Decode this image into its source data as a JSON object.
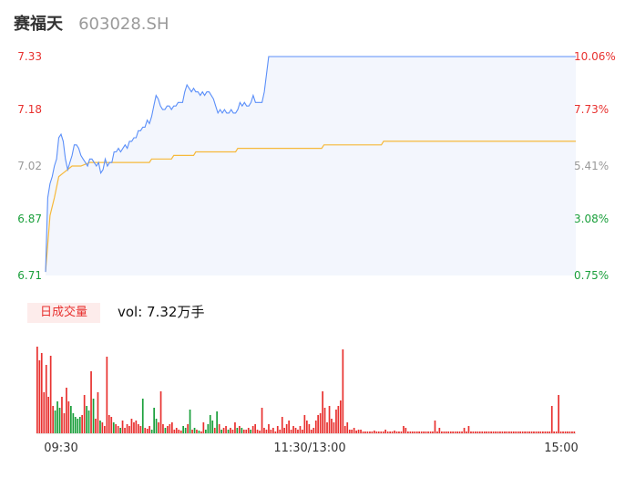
{
  "header": {
    "stock_name": "赛福天",
    "stock_code": "603028.SH"
  },
  "colors": {
    "price_line": "#5b8ff9",
    "avg_line": "#f6b93b",
    "area_fill": "#f3f6fd",
    "up": "#e8312f",
    "down": "#1a9f3b",
    "neutral": "#999999"
  },
  "volume_panel": {
    "badge": "日成交量",
    "summary": "vol: 7.32万手"
  },
  "chart_data": [
    {
      "type": "line",
      "name": "intraday-price",
      "y_left_ticks": [
        "7.33",
        "7.18",
        "7.02",
        "6.87",
        "6.71"
      ],
      "y_right_ticks": [
        "10.06%",
        "7.73%",
        "5.41%",
        "3.08%",
        "0.75%"
      ],
      "y_left_values": [
        7.33,
        7.18,
        7.02,
        6.87,
        6.71
      ],
      "y_tick_colors": [
        "up",
        "up",
        "neutral",
        "down",
        "down"
      ],
      "ylim": [
        6.71,
        7.33
      ],
      "x_ticks": [
        "09:30",
        "11:30/13:00",
        "15:00"
      ],
      "series": [
        {
          "key": "price",
          "color_key": "price_line",
          "points": [
            [
              0,
              6.72
            ],
            [
              1,
              6.93
            ],
            [
              2,
              6.97
            ],
            [
              3,
              6.99
            ],
            [
              4,
              7.02
            ],
            [
              5,
              7.04
            ],
            [
              6,
              7.1
            ],
            [
              7,
              7.11
            ],
            [
              8,
              7.09
            ],
            [
              9,
              7.04
            ],
            [
              10,
              7.01
            ],
            [
              11,
              7.03
            ],
            [
              12,
              7.05
            ],
            [
              13,
              7.08
            ],
            [
              14,
              7.08
            ],
            [
              15,
              7.07
            ],
            [
              16,
              7.05
            ],
            [
              17,
              7.04
            ],
            [
              18,
              7.03
            ],
            [
              19,
              7.02
            ],
            [
              20,
              7.04
            ],
            [
              21,
              7.04
            ],
            [
              22,
              7.03
            ],
            [
              23,
              7.02
            ],
            [
              24,
              7.03
            ],
            [
              25,
              7.0
            ],
            [
              26,
              7.01
            ],
            [
              27,
              7.04
            ],
            [
              28,
              7.02
            ],
            [
              29,
              7.03
            ],
            [
              30,
              7.03
            ],
            [
              31,
              7.06
            ],
            [
              32,
              7.06
            ],
            [
              33,
              7.07
            ],
            [
              34,
              7.06
            ],
            [
              35,
              7.07
            ],
            [
              36,
              7.08
            ],
            [
              37,
              7.07
            ],
            [
              38,
              7.09
            ],
            [
              39,
              7.09
            ],
            [
              40,
              7.1
            ],
            [
              41,
              7.1
            ],
            [
              42,
              7.12
            ],
            [
              43,
              7.12
            ],
            [
              44,
              7.13
            ],
            [
              45,
              7.13
            ],
            [
              46,
              7.15
            ],
            [
              47,
              7.14
            ],
            [
              48,
              7.16
            ],
            [
              49,
              7.19
            ],
            [
              50,
              7.22
            ],
            [
              51,
              7.21
            ],
            [
              52,
              7.19
            ],
            [
              53,
              7.18
            ],
            [
              54,
              7.18
            ],
            [
              55,
              7.19
            ],
            [
              56,
              7.19
            ],
            [
              57,
              7.18
            ],
            [
              58,
              7.19
            ],
            [
              59,
              7.19
            ],
            [
              60,
              7.2
            ],
            [
              61,
              7.2
            ],
            [
              62,
              7.2
            ],
            [
              63,
              7.23
            ],
            [
              64,
              7.25
            ],
            [
              65,
              7.24
            ],
            [
              66,
              7.23
            ],
            [
              67,
              7.24
            ],
            [
              68,
              7.23
            ],
            [
              69,
              7.23
            ],
            [
              70,
              7.22
            ],
            [
              71,
              7.23
            ],
            [
              72,
              7.22
            ],
            [
              73,
              7.23
            ],
            [
              74,
              7.23
            ],
            [
              75,
              7.22
            ],
            [
              76,
              7.21
            ],
            [
              77,
              7.19
            ],
            [
              78,
              7.17
            ],
            [
              79,
              7.18
            ],
            [
              80,
              7.17
            ],
            [
              81,
              7.18
            ],
            [
              82,
              7.17
            ],
            [
              83,
              7.17
            ],
            [
              84,
              7.18
            ],
            [
              85,
              7.17
            ],
            [
              86,
              7.17
            ],
            [
              87,
              7.18
            ],
            [
              88,
              7.2
            ],
            [
              89,
              7.19
            ],
            [
              90,
              7.2
            ],
            [
              91,
              7.19
            ],
            [
              92,
              7.19
            ],
            [
              93,
              7.2
            ],
            [
              94,
              7.22
            ],
            [
              95,
              7.2
            ],
            [
              96,
              7.2
            ],
            [
              97,
              7.2
            ],
            [
              98,
              7.2
            ],
            [
              99,
              7.23
            ],
            [
              100,
              7.28
            ],
            [
              101,
              7.33
            ],
            [
              110,
              7.33
            ],
            [
              140,
              7.33
            ],
            [
              180,
              7.33
            ],
            [
              220,
              7.33
            ],
            [
              240,
              7.33
            ]
          ]
        },
        {
          "key": "avg",
          "color_key": "avg_line",
          "points": [
            [
              0,
              6.72
            ],
            [
              2,
              6.88
            ],
            [
              4,
              6.93
            ],
            [
              6,
              6.99
            ],
            [
              8,
              7.0
            ],
            [
              10,
              7.01
            ],
            [
              12,
              7.02
            ],
            [
              16,
              7.02
            ],
            [
              20,
              7.03
            ],
            [
              30,
              7.03
            ],
            [
              40,
              7.03
            ],
            [
              47,
              7.03
            ],
            [
              48,
              7.04
            ],
            [
              57,
              7.04
            ],
            [
              58,
              7.05
            ],
            [
              67,
              7.05
            ],
            [
              68,
              7.06
            ],
            [
              80,
              7.06
            ],
            [
              86,
              7.06
            ],
            [
              87,
              7.07
            ],
            [
              110,
              7.07
            ],
            [
              125,
              7.07
            ],
            [
              126,
              7.08
            ],
            [
              152,
              7.08
            ],
            [
              153,
              7.09
            ],
            [
              200,
              7.09
            ],
            [
              240,
              7.09
            ]
          ]
        }
      ]
    },
    {
      "type": "bar",
      "name": "volume",
      "x_ticks": [
        "09:30",
        "11:30/13:00",
        "15:00"
      ],
      "series": [
        {
          "key": "volume",
          "values": [
            95,
            80,
            88,
            45,
            75,
            40,
            85,
            30,
            25,
            35,
            28,
            40,
            22,
            50,
            35,
            30,
            22,
            18,
            16,
            18,
            20,
            42,
            30,
            25,
            68,
            38,
            16,
            45,
            14,
            12,
            8,
            84,
            20,
            18,
            12,
            10,
            8,
            6,
            14,
            6,
            10,
            8,
            16,
            12,
            14,
            10,
            8,
            38,
            6,
            5,
            8,
            4,
            28,
            16,
            12,
            46,
            10,
            6,
            8,
            10,
            12,
            4,
            6,
            4,
            3,
            8,
            6,
            10,
            26,
            4,
            6,
            4,
            3,
            2,
            12,
            4,
            10,
            20,
            14,
            6,
            24,
            10,
            4,
            6,
            8,
            4,
            6,
            4,
            12,
            6,
            8,
            6,
            4,
            4,
            6,
            4,
            8,
            10,
            4,
            3,
            28,
            6,
            4,
            10,
            4,
            6,
            2,
            8,
            4,
            18,
            6,
            10,
            14,
            4,
            8,
            6,
            4,
            8,
            4,
            20,
            14,
            10,
            4,
            6,
            14,
            20,
            22,
            46,
            28,
            12,
            30,
            16,
            12,
            26,
            30,
            36,
            92,
            8,
            12,
            4,
            4,
            6,
            3,
            4,
            4,
            2,
            2,
            2,
            2,
            2,
            3,
            2,
            2,
            2,
            2,
            4,
            2,
            2,
            2,
            3,
            2,
            2,
            2,
            8,
            6,
            2,
            2,
            2,
            2,
            2,
            2,
            2,
            2,
            2,
            2,
            2,
            2,
            14,
            2,
            6,
            2,
            2,
            2,
            2,
            2,
            2,
            2,
            2,
            2,
            2,
            6,
            2,
            8,
            2,
            2,
            2,
            2,
            2,
            2,
            2,
            2,
            2,
            2,
            2,
            2,
            2,
            2,
            2,
            2,
            2,
            2,
            2,
            2,
            2,
            2,
            2,
            2,
            2,
            2,
            2,
            2,
            2,
            2,
            2,
            2,
            2,
            2,
            2,
            2,
            30,
            2,
            2,
            42,
            2,
            2,
            2,
            2,
            2,
            2,
            2
          ]
        }
      ]
    }
  ]
}
